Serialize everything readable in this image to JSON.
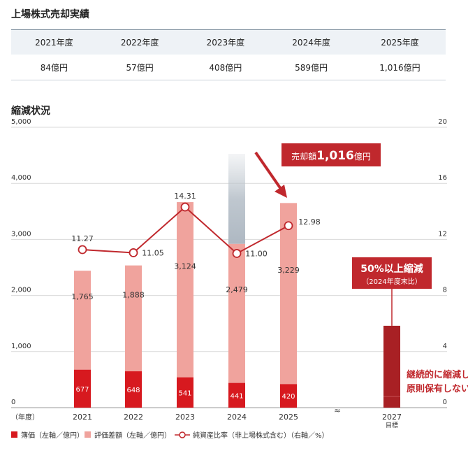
{
  "sales_section": {
    "title": "上場株式売却実績",
    "years": [
      "2021年度",
      "2022年度",
      "2023年度",
      "2024年度",
      "2025年度"
    ],
    "amounts": [
      "84億円",
      "57億円",
      "408億円",
      "589億円",
      "1,016億円"
    ]
  },
  "chart_section": {
    "title": "縮減状況"
  },
  "chart_data": {
    "type": "bar",
    "categories": [
      "2021",
      "2022",
      "2023",
      "2024",
      "2025"
    ],
    "series": [
      {
        "name": "簿価（左軸／億円）",
        "values": [
          677,
          648,
          541,
          441,
          420
        ],
        "color": "#d7191f"
      },
      {
        "name": "評価差額（左軸／億円）",
        "values": [
          1765,
          1888,
          3124,
          2479,
          3229
        ],
        "color": "#f0a39d"
      },
      {
        "name": "純資産比率（非上場株式含む）（右軸／%）",
        "values": [
          11.27,
          11.05,
          14.31,
          11.0,
          12.98
        ],
        "color": "#c0282d"
      }
    ],
    "bar_labels_top": [
      "677",
      "648",
      "541",
      "441",
      "420"
    ],
    "bar_labels_mid": [
      "1,765",
      "1,888",
      "3,124",
      "2,479",
      "3,229"
    ],
    "line_labels": [
      "11.27",
      "11.05",
      "14.31",
      "11.00",
      "12.98"
    ],
    "target": {
      "category": "2027",
      "sublabel": "目標",
      "value": 1460,
      "color": "#a82024"
    },
    "left_axis": {
      "ylim": [
        0,
        5000
      ],
      "ticks": [
        "5,000",
        "4,000",
        "3,000",
        "2,000",
        "1,000",
        "0"
      ]
    },
    "right_axis": {
      "ylim": [
        0,
        20
      ],
      "ticks": [
        "20",
        "16",
        "12",
        "8",
        "4",
        "0"
      ]
    },
    "x_axis_unit": "（年度）",
    "grid": true,
    "legend_position": "bottom-left",
    "callouts": {
      "sale": {
        "prefix": "売却額",
        "amount": "1,016",
        "suffix": "億円"
      },
      "reduce": {
        "line1": "50%以上縮減",
        "line2": "（2024年度末比）"
      },
      "policy": {
        "line1": "継続的に縮減し",
        "line2": "原則保有しない"
      }
    },
    "axis_break_symbol": "≈"
  }
}
